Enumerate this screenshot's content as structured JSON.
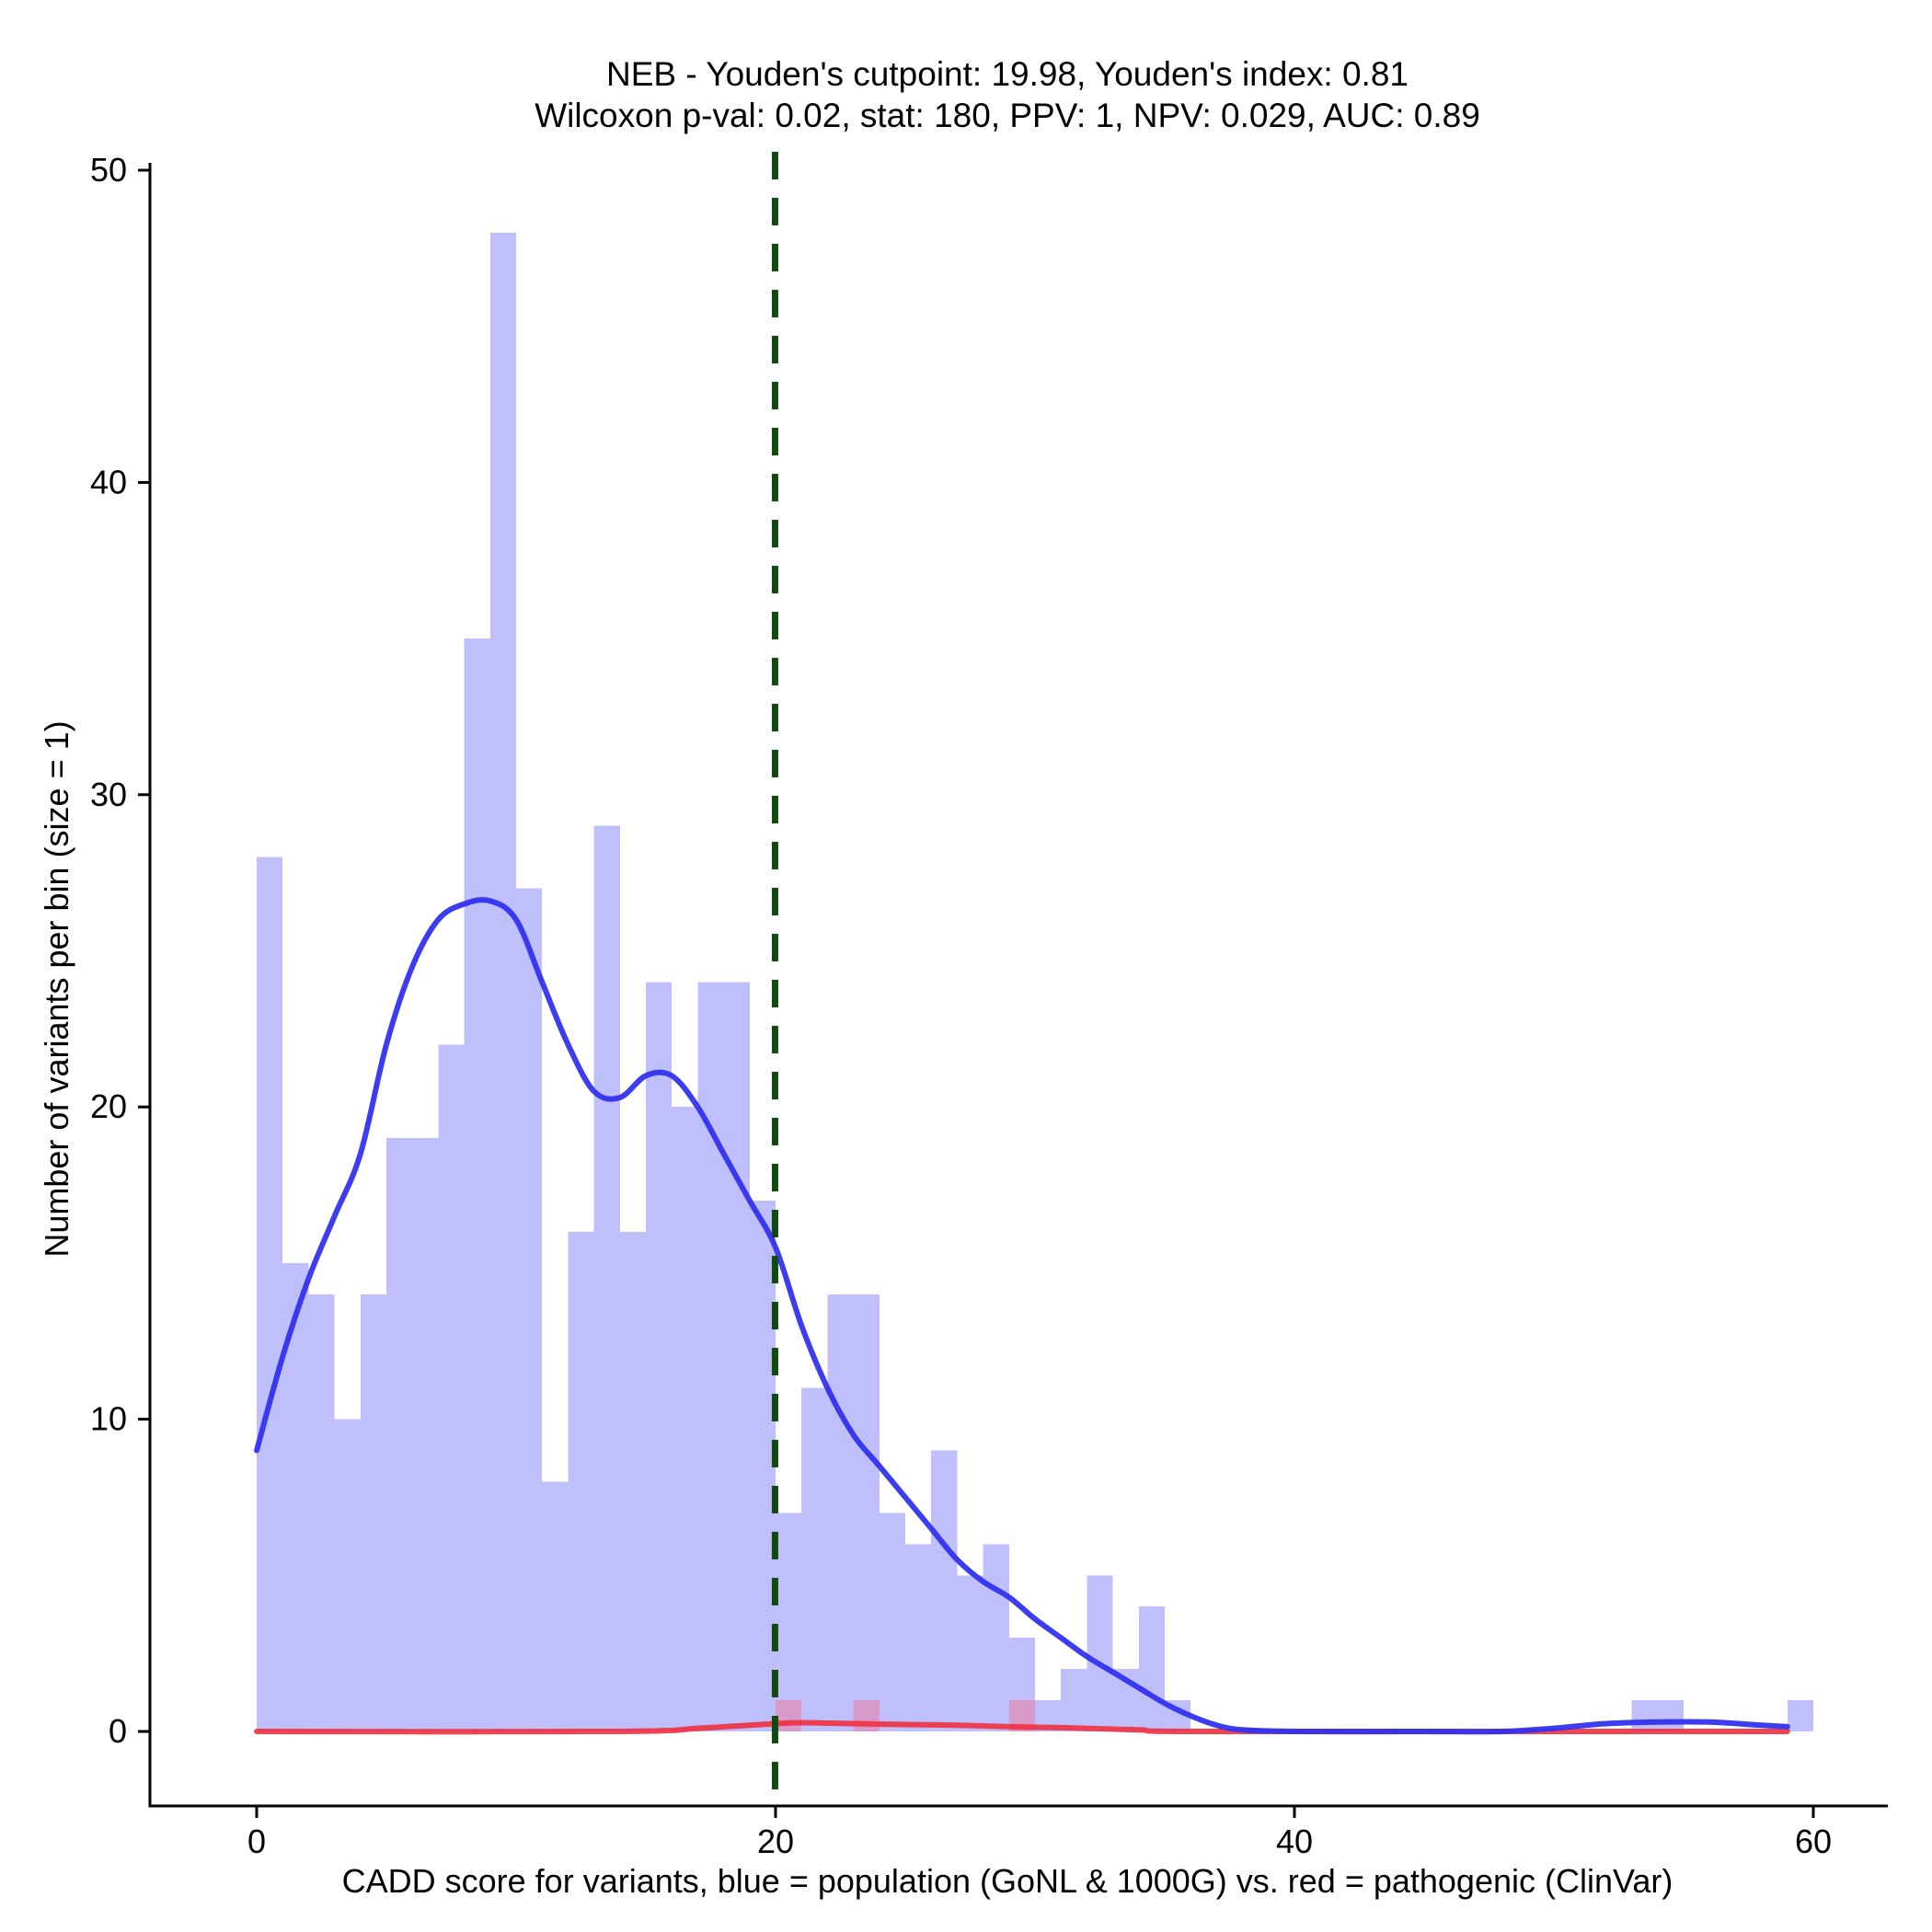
{
  "chart_data": {
    "type": "histogram",
    "title": [
      "NEB - Youden's cutpoint: 19.98, Youden's index: 0.81",
      "Wilcoxon p-val: 0.02, stat: 180, PPV: 1, NPV: 0.029, AUC: 0.89"
    ],
    "xlabel": "CADD score for variants, blue = population (GoNL & 1000G) vs. red = pathogenic (ClinVar)",
    "ylabel": "Number of variants per bin (size = 1)",
    "xlim": [
      -4,
      63
    ],
    "ylim": [
      -2.4,
      50.5
    ],
    "xticks": [
      0,
      20,
      40,
      60
    ],
    "yticks": [
      0,
      10,
      20,
      30,
      40,
      50
    ],
    "bin_size": 1,
    "cutpoint": 19.98,
    "colors": {
      "population_bar": "#bfbffc",
      "pathogenic_bar": "#d89ac8",
      "population_line": "#3131f0",
      "pathogenic_line": "#f03040",
      "cutpoint_line": "#0f4b0f",
      "axis": "#000000"
    },
    "series": [
      {
        "name": "population (GoNL & 1000G)",
        "bins": [
          {
            "x": 0,
            "count": 28
          },
          {
            "x": 1,
            "count": 15
          },
          {
            "x": 2,
            "count": 14
          },
          {
            "x": 3,
            "count": 10
          },
          {
            "x": 4,
            "count": 14
          },
          {
            "x": 5,
            "count": 19
          },
          {
            "x": 6,
            "count": 19
          },
          {
            "x": 7,
            "count": 22
          },
          {
            "x": 8,
            "count": 35
          },
          {
            "x": 9,
            "count": 48
          },
          {
            "x": 10,
            "count": 27
          },
          {
            "x": 11,
            "count": 8
          },
          {
            "x": 12,
            "count": 16
          },
          {
            "x": 13,
            "count": 29
          },
          {
            "x": 14,
            "count": 16
          },
          {
            "x": 15,
            "count": 24
          },
          {
            "x": 16,
            "count": 20
          },
          {
            "x": 17,
            "count": 24
          },
          {
            "x": 18,
            "count": 24
          },
          {
            "x": 19,
            "count": 17
          },
          {
            "x": 20,
            "count": 7
          },
          {
            "x": 21,
            "count": 11
          },
          {
            "x": 22,
            "count": 14
          },
          {
            "x": 23,
            "count": 14
          },
          {
            "x": 24,
            "count": 7
          },
          {
            "x": 25,
            "count": 6
          },
          {
            "x": 26,
            "count": 9
          },
          {
            "x": 27,
            "count": 5
          },
          {
            "x": 28,
            "count": 6
          },
          {
            "x": 29,
            "count": 3
          },
          {
            "x": 30,
            "count": 1
          },
          {
            "x": 31,
            "count": 2
          },
          {
            "x": 32,
            "count": 5
          },
          {
            "x": 33,
            "count": 2
          },
          {
            "x": 34,
            "count": 4
          },
          {
            "x": 35,
            "count": 1
          },
          {
            "x": 53,
            "count": 1
          },
          {
            "x": 54,
            "count": 1
          },
          {
            "x": 59,
            "count": 1
          }
        ],
        "density_curve": [
          [
            0,
            9.0
          ],
          [
            1,
            12.0
          ],
          [
            2,
            14.5
          ],
          [
            3,
            16.5
          ],
          [
            4,
            18.5
          ],
          [
            5,
            22.0
          ],
          [
            6,
            24.5
          ],
          [
            7,
            26.0
          ],
          [
            8,
            26.5
          ],
          [
            9,
            26.6
          ],
          [
            10,
            26.0
          ],
          [
            11,
            24.0
          ],
          [
            12,
            22.0
          ],
          [
            13,
            20.5
          ],
          [
            14,
            20.3
          ],
          [
            15,
            21.0
          ],
          [
            16,
            21.0
          ],
          [
            17,
            20.0
          ],
          [
            18,
            18.5
          ],
          [
            19,
            17.0
          ],
          [
            20,
            15.5
          ],
          [
            21,
            13.0
          ],
          [
            22,
            11.0
          ],
          [
            23,
            9.5
          ],
          [
            24,
            8.5
          ],
          [
            25,
            7.5
          ],
          [
            26,
            6.5
          ],
          [
            27,
            5.5
          ],
          [
            28,
            4.8
          ],
          [
            29,
            4.3
          ],
          [
            30,
            3.6
          ],
          [
            31,
            3.0
          ],
          [
            32,
            2.4
          ],
          [
            33,
            1.9
          ],
          [
            34,
            1.4
          ],
          [
            35,
            0.9
          ],
          [
            36,
            0.5
          ],
          [
            37,
            0.2
          ],
          [
            38,
            0.05
          ],
          [
            40,
            0.0
          ],
          [
            45,
            0.0
          ],
          [
            48,
            0.0
          ],
          [
            50,
            0.1
          ],
          [
            52,
            0.25
          ],
          [
            54,
            0.3
          ],
          [
            56,
            0.3
          ],
          [
            58,
            0.2
          ],
          [
            59,
            0.15
          ]
        ]
      },
      {
        "name": "pathogenic (ClinVar)",
        "bins": [
          {
            "x": 20,
            "count": 1
          },
          {
            "x": 23,
            "count": 1
          },
          {
            "x": 29,
            "count": 1
          }
        ],
        "density_curve": [
          [
            0,
            0.0
          ],
          [
            14,
            0.0
          ],
          [
            17,
            0.1
          ],
          [
            19,
            0.2
          ],
          [
            20,
            0.25
          ],
          [
            21,
            0.28
          ],
          [
            23,
            0.25
          ],
          [
            25,
            0.22
          ],
          [
            27,
            0.2
          ],
          [
            29,
            0.15
          ],
          [
            31,
            0.12
          ],
          [
            34,
            0.05
          ],
          [
            36,
            0.0
          ],
          [
            50,
            0.0
          ],
          [
            59,
            0.0
          ]
        ]
      }
    ]
  }
}
